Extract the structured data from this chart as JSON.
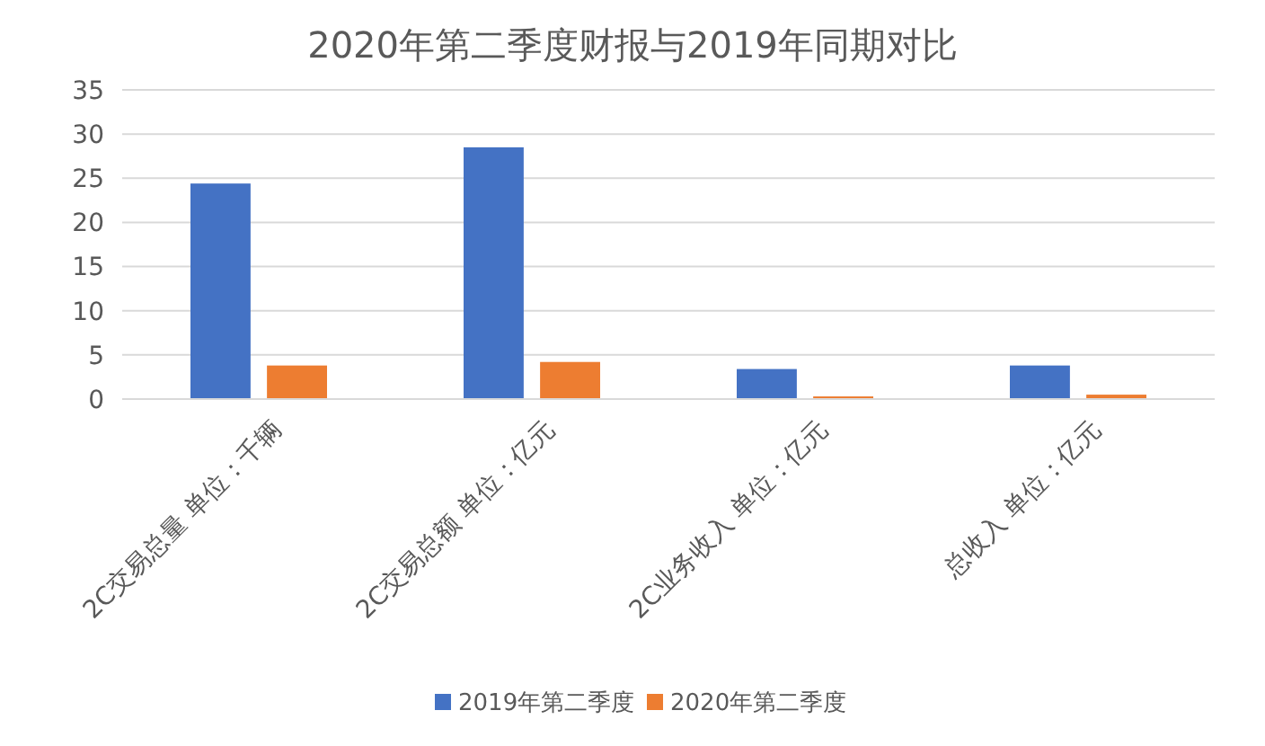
{
  "chart_data": {
    "type": "bar",
    "title": "2020年第二季度财报与2019年同期对比",
    "categories": [
      "2C交易总量 单位：千辆",
      "2C交易总额 单位：亿元",
      "2C业务收入 单位：亿元",
      "总收入 单位：亿元"
    ],
    "series": [
      {
        "name": "2019年第二季度",
        "color": "#4472c4",
        "values": [
          24.4,
          28.5,
          3.4,
          3.8
        ]
      },
      {
        "name": "2020年第二季度",
        "color": "#ed7d31",
        "values": [
          3.8,
          4.2,
          0.3,
          0.5
        ]
      }
    ],
    "ylim": [
      0,
      35
    ],
    "yticks": [
      0,
      5,
      10,
      15,
      20,
      25,
      30,
      35
    ],
    "grid": "y",
    "legend": "bottom"
  }
}
